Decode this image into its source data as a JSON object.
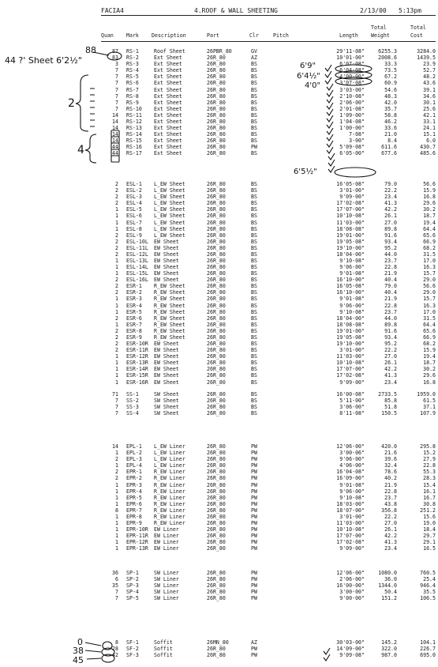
{
  "header": {
    "job": "FACIA4",
    "title": "4.ROOF & WALL SHEETING",
    "date": "2/13/00",
    "time": "5:13pm"
  },
  "columns": {
    "quan": "Quan",
    "mark": "Mark",
    "description": "Description",
    "part": "Part",
    "clr": "Clr",
    "pitch": "Pitch",
    "length": "Length",
    "total_weight_1": "Total",
    "total_weight_2": "Weight",
    "total_cost_1": "Total",
    "total_cost_2": "Cost"
  },
  "groups": [
    {
      "rows": [
        {
          "q": "87",
          "m": "RS-1",
          "d": "Roof Sheet",
          "p": "26PBR_80",
          "c": "GV",
          "l": "29'11-08\"",
          "w": "6255.3",
          "t": "3284.0"
        },
        {
          "q": "83",
          "m": "RS-2",
          "d": "Ext Sheet",
          "p": "26R_80",
          "c": "AZ",
          "l": "10'01-00\"",
          "w": "2008.6",
          "t": "1439.5"
        },
        {
          "q": "3",
          "m": "RS-3",
          "d": "Ext Sheet",
          "p": "26R_80",
          "c": "BS",
          "l": "6'07-08\"",
          "w": "33.3",
          "t": "23.9"
        },
        {
          "q": "7",
          "m": "RS-4",
          "d": "Ext Sheet",
          "p": "26R_80",
          "c": "BS",
          "l": "6'04-08\"",
          "w": "73.5",
          "t": "52.7"
        },
        {
          "q": "7",
          "m": "RS-5",
          "d": "Ext Sheet",
          "p": "26R_80",
          "c": "BS",
          "l": "4'00-00\"",
          "w": "67.2",
          "t": "48.2"
        },
        {
          "q": "7",
          "m": "RS-6",
          "d": "Ext Sheet",
          "p": "26R_80",
          "c": "BS",
          "l": "3'07-08\"",
          "w": "60.9",
          "t": "43.6"
        },
        {
          "q": "7",
          "m": "RS-7",
          "d": "Ext Sheet",
          "p": "26R_80",
          "c": "BS",
          "l": "3'03-00\"",
          "w": "54.6",
          "t": "39.1"
        },
        {
          "q": "7",
          "m": "RS-8",
          "d": "Ext Sheet",
          "p": "26R_80",
          "c": "BS",
          "l": "2'10-08\"",
          "w": "48.3",
          "t": "34.6"
        },
        {
          "q": "7",
          "m": "RS-9",
          "d": "Ext Sheet",
          "p": "26R_80",
          "c": "BS",
          "l": "2'06-00\"",
          "w": "42.0",
          "t": "30.1"
        },
        {
          "q": "7",
          "m": "RS-10",
          "d": "Ext Sheet",
          "p": "26R_80",
          "c": "BS",
          "l": "2'01-08\"",
          "w": "35.7",
          "t": "25.6"
        },
        {
          "q": "14",
          "m": "RS-11",
          "d": "Ext Sheet",
          "p": "26R_80",
          "c": "BS",
          "l": "1'09-00\"",
          "w": "58.8",
          "t": "42.1"
        },
        {
          "q": "14",
          "m": "RS-12",
          "d": "Ext Sheet",
          "p": "26R_80",
          "c": "BS",
          "l": "1'04-08\"",
          "w": "46.2",
          "t": "33.1"
        },
        {
          "q": "14",
          "m": "RS-13",
          "d": "Ext Sheet",
          "p": "26R_80",
          "c": "BS",
          "l": "1'00-00\"",
          "w": "33.6",
          "t": "24.1"
        },
        {
          "q": "14",
          "m": "RS-14",
          "d": "Ext Sheet",
          "p": "26R_80",
          "c": "BS",
          "l": "7-08\"",
          "w": "21.0",
          "t": "15.1"
        },
        {
          "q": "14",
          "m": "RS-15",
          "d": "Ext Sheet",
          "p": "26R_80",
          "c": "BS",
          "l": "3-00\"",
          "w": "8.4",
          "t": "6.0"
        },
        {
          "q": "44",
          "m": "RS-16",
          "d": "Ext Sheet",
          "p": "26R_80",
          "c": "PW",
          "l": "5'09-08\"",
          "w": "611.6",
          "t": "430.7"
        },
        {
          "q": "44",
          "m": "RS-17",
          "d": "Ext Sheet",
          "p": "26R_80",
          "c": "BS",
          "l": "6'05-00\"",
          "w": "677.6",
          "t": "485.6"
        }
      ]
    },
    {
      "rows": [
        {
          "q": "2",
          "m": "ESL-1",
          "d": "L_EW Sheet",
          "p": "26R_80",
          "c": "BS",
          "l": "16'05-08\"",
          "w": "79.0",
          "t": "56.6"
        },
        {
          "q": "2",
          "m": "ESL-2",
          "d": "L_EW Sheet",
          "p": "26R_80",
          "c": "BS",
          "l": "3'01-00\"",
          "w": "22.2",
          "t": "15.9"
        },
        {
          "q": "2",
          "m": "ESL-3",
          "d": "L_EW Sheet",
          "p": "26R_80",
          "c": "BS",
          "l": "9'09-00\"",
          "w": "23.4",
          "t": "16.8"
        },
        {
          "q": "2",
          "m": "ESL-4",
          "d": "L_EW Sheet",
          "p": "26R_80",
          "c": "BS",
          "l": "17'02-08\"",
          "w": "41.3",
          "t": "29.6"
        },
        {
          "q": "1",
          "m": "ESL-5",
          "d": "L_EW Sheet",
          "p": "26R_80",
          "c": "BS",
          "l": "17'07-00\"",
          "w": "42.2",
          "t": "30.2"
        },
        {
          "q": "1",
          "m": "ESL-6",
          "d": "L_EW Sheet",
          "p": "26R_80",
          "c": "BS",
          "l": "10'10-08\"",
          "w": "26.1",
          "t": "18.7"
        },
        {
          "q": "1",
          "m": "ESL-7",
          "d": "L_EW Sheet",
          "p": "26R_80",
          "c": "BS",
          "l": "11'03-00\"",
          "w": "27.0",
          "t": "19.4"
        },
        {
          "q": "1",
          "m": "ESL-8",
          "d": "L_EW Sheet",
          "p": "26R_80",
          "c": "BS",
          "l": "18'08-08\"",
          "w": "89.8",
          "t": "64.4"
        },
        {
          "q": "2",
          "m": "ESL-9",
          "d": "L_EW Sheet",
          "p": "26R_80",
          "c": "BS",
          "l": "19'01-00\"",
          "w": "91.6",
          "t": "65.6"
        },
        {
          "q": "2",
          "m": "ESL-10L",
          "d": "EW Sheet",
          "p": "26R_80",
          "c": "BS",
          "l": "19'05-08\"",
          "w": "93.4",
          "t": "66.9"
        },
        {
          "q": "2",
          "m": "ESL-11L",
          "d": "EW Sheet",
          "p": "26R_80",
          "c": "BS",
          "l": "19'10-00\"",
          "w": "95.2",
          "t": "68.2"
        },
        {
          "q": "2",
          "m": "ESL-12L",
          "d": "EW Sheet",
          "p": "26R_80",
          "c": "BS",
          "l": "18'04-00\"",
          "w": "44.0",
          "t": "31.5"
        },
        {
          "q": "1",
          "m": "ESL-13L",
          "d": "EW Sheet",
          "p": "26R_80",
          "c": "BS",
          "l": "9'10-08\"",
          "w": "23.7",
          "t": "17.0"
        },
        {
          "q": "1",
          "m": "ESL-14L",
          "d": "EW Sheet",
          "p": "26R_80",
          "c": "BS",
          "l": "9'06-00\"",
          "w": "22.8",
          "t": "16.3"
        },
        {
          "q": "1",
          "m": "ESL-15L",
          "d": "EW Sheet",
          "p": "26R_80",
          "c": "BS",
          "l": "9'01-08\"",
          "w": "21.9",
          "t": "15.7"
        },
        {
          "q": "2",
          "m": "ESL-16L",
          "d": "EW Sheet",
          "p": "26R_80",
          "c": "BS",
          "l": "16'10-00\"",
          "w": "40.4",
          "t": "29.0"
        },
        {
          "q": "2",
          "m": "ESR-1",
          "d": "R_EW Sheet",
          "p": "26R_80",
          "c": "BS",
          "l": "16'05-08\"",
          "w": "79.0",
          "t": "56.6"
        },
        {
          "q": "2",
          "m": "ESR-2",
          "d": "R_EW Sheet",
          "p": "26R_80",
          "c": "BS",
          "l": "16'10-00\"",
          "w": "40.4",
          "t": "29.0"
        },
        {
          "q": "1",
          "m": "ESR-3",
          "d": "R_EW Sheet",
          "p": "26R_80",
          "c": "BS",
          "l": "9'01-08\"",
          "w": "21.9",
          "t": "15.7"
        },
        {
          "q": "1",
          "m": "ESR-4",
          "d": "R_EW Sheet",
          "p": "26R_80",
          "c": "BS",
          "l": "9'06-00\"",
          "w": "22.8",
          "t": "16.3"
        },
        {
          "q": "1",
          "m": "ESR-5",
          "d": "R_EW Sheet",
          "p": "26R_80",
          "c": "BS",
          "l": "9'10-08\"",
          "w": "23.7",
          "t": "17.0"
        },
        {
          "q": "2",
          "m": "ESR-6",
          "d": "R_EW Sheet",
          "p": "26R_80",
          "c": "BS",
          "l": "18'04-00\"",
          "w": "44.0",
          "t": "31.5"
        },
        {
          "q": "1",
          "m": "ESR-7",
          "d": "R_EW Sheet",
          "p": "26R_80",
          "c": "BS",
          "l": "18'08-08\"",
          "w": "89.8",
          "t": "64.4"
        },
        {
          "q": "2",
          "m": "ESR-8",
          "d": "R_EW Sheet",
          "p": "26R_80",
          "c": "BS",
          "l": "19'01-00\"",
          "w": "91.6",
          "t": "65.6"
        },
        {
          "q": "2",
          "m": "ESR-9",
          "d": "R_EW Sheet",
          "p": "26R_80",
          "c": "BS",
          "l": "19'05-08\"",
          "w": "93.4",
          "t": "66.9"
        },
        {
          "q": "2",
          "m": "ESR-10R",
          "d": "EW Sheet",
          "p": "26R_80",
          "c": "BS",
          "l": "19'10-00\"",
          "w": "95.2",
          "t": "68.2"
        },
        {
          "q": "2",
          "m": "ESR-11R",
          "d": "EW Sheet",
          "p": "26R_80",
          "c": "BS",
          "l": "3'01-00\"",
          "w": "22.2",
          "t": "15.9"
        },
        {
          "q": "1",
          "m": "ESR-12R",
          "d": "EW Sheet",
          "p": "26R_80",
          "c": "BS",
          "l": "11'03-00\"",
          "w": "27.0",
          "t": "19.4"
        },
        {
          "q": "1",
          "m": "ESR-13R",
          "d": "EW Sheet",
          "p": "26R_80",
          "c": "BS",
          "l": "10'10-08\"",
          "w": "26.1",
          "t": "18.7"
        },
        {
          "q": "1",
          "m": "ESR-14R",
          "d": "EW Sheet",
          "p": "26R_80",
          "c": "BS",
          "l": "17'07-00\"",
          "w": "42.2",
          "t": "30.2"
        },
        {
          "q": "1",
          "m": "ESR-15R",
          "d": "EW Sheet",
          "p": "26R_80",
          "c": "BS",
          "l": "17'02-08\"",
          "w": "41.3",
          "t": "29.6"
        },
        {
          "q": "1",
          "m": "ESR-16R",
          "d": "EW Sheet",
          "p": "26R_80",
          "c": "BS",
          "l": "9'09-00\"",
          "w": "23.4",
          "t": "16.8"
        }
      ]
    },
    {
      "rows": [
        {
          "q": "71",
          "m": "SS-1",
          "d": "SW Sheet",
          "p": "26R_80",
          "c": "BS",
          "l": "16'00-08\"",
          "w": "2733.5",
          "t": "1959.0"
        },
        {
          "q": "7",
          "m": "SS-2",
          "d": "SW Sheet",
          "p": "26R_80",
          "c": "BS",
          "l": "5'11-00\"",
          "w": "85.8",
          "t": "61.5"
        },
        {
          "q": "7",
          "m": "SS-3",
          "d": "SW Sheet",
          "p": "26R_80",
          "c": "BS",
          "l": "3'06-00\"",
          "w": "51.8",
          "t": "37.1"
        },
        {
          "q": "7",
          "m": "SS-4",
          "d": "SW Sheet",
          "p": "26R_80",
          "c": "BS",
          "l": "8'11-08\"",
          "w": "150.5",
          "t": "107.9"
        }
      ]
    },
    {
      "rows": [
        {
          "q": "14",
          "m": "EPL-1",
          "d": "L_EW Liner",
          "p": "26R_80",
          "c": "PW",
          "l": "12'06-00\"",
          "w": "420.0",
          "t": "295.8"
        },
        {
          "q": "1",
          "m": "EPL-2",
          "d": "L_EW Liner",
          "p": "26R_80",
          "c": "PW",
          "l": "3'00-06\"",
          "w": "21.6",
          "t": "15.2"
        },
        {
          "q": "2",
          "m": "EPL-3",
          "d": "L_EW Liner",
          "p": "26R_80",
          "c": "PW",
          "l": "9'06-00\"",
          "w": "39.6",
          "t": "27.9"
        },
        {
          "q": "1",
          "m": "EPL-4",
          "d": "L_EW Liner",
          "p": "26R_80",
          "c": "PW",
          "l": "4'06-00\"",
          "w": "32.4",
          "t": "22.8"
        },
        {
          "q": "2",
          "m": "EPR-1",
          "d": "R_EW Liner",
          "p": "26R_80",
          "c": "PW",
          "l": "16'04-08\"",
          "w": "78.6",
          "t": "55.3"
        },
        {
          "q": "2",
          "m": "EPR-2",
          "d": "R_EW Liner",
          "p": "26R_80",
          "c": "PW",
          "l": "16'09-00\"",
          "w": "40.2",
          "t": "28.3"
        },
        {
          "q": "1",
          "m": "EPR-3",
          "d": "R_EW Liner",
          "p": "26R_80",
          "c": "PW",
          "l": "9'01-08\"",
          "w": "21.9",
          "t": "15.4"
        },
        {
          "q": "1",
          "m": "EPR-4",
          "d": "R_EW Liner",
          "p": "26R_80",
          "c": "PW",
          "l": "9'06-00\"",
          "w": "22.8",
          "t": "16.1"
        },
        {
          "q": "1",
          "m": "EPR-5",
          "d": "R_EW Liner",
          "p": "26R_80",
          "c": "PW",
          "l": "9'10-08\"",
          "w": "23.7",
          "t": "16.7"
        },
        {
          "q": "1",
          "m": "EPR-6",
          "d": "R_EW Liner",
          "p": "26R_80",
          "c": "PW",
          "l": "18'03-00\"",
          "w": "43.8",
          "t": "30.8"
        },
        {
          "q": "8",
          "m": "EPR-7",
          "d": "R_EW Liner",
          "p": "26R_80",
          "c": "PW",
          "l": "18'07-00\"",
          "w": "356.8",
          "t": "251.2"
        },
        {
          "q": "1",
          "m": "EPR-8",
          "d": "R_EW Liner",
          "p": "26R_80",
          "c": "PW",
          "l": "3'01-00\"",
          "w": "22.2",
          "t": "15.6"
        },
        {
          "q": "1",
          "m": "EPR-9",
          "d": "R_EW Liner",
          "p": "26R_80",
          "c": "PW",
          "l": "11'03-00\"",
          "w": "27.0",
          "t": "19.0"
        },
        {
          "q": "1",
          "m": "EPR-10R",
          "d": "EW Liner",
          "p": "26R_80",
          "c": "PW",
          "l": "10'10-08\"",
          "w": "26.1",
          "t": "18.4"
        },
        {
          "q": "1",
          "m": "EPR-11R",
          "d": "EW Liner",
          "p": "26R_80",
          "c": "PW",
          "l": "17'07-00\"",
          "w": "42.2",
          "t": "29.7"
        },
        {
          "q": "1",
          "m": "EPR-12R",
          "d": "EW Liner",
          "p": "26R_80",
          "c": "PW",
          "l": "17'02-08\"",
          "w": "41.3",
          "t": "29.1"
        },
        {
          "q": "1",
          "m": "EPR-13R",
          "d": "EW Liner",
          "p": "26R_80",
          "c": "PW",
          "l": "9'09-00\"",
          "w": "23.4",
          "t": "16.5"
        }
      ]
    },
    {
      "rows": [
        {
          "q": "36",
          "m": "SP-1",
          "d": "SW Liner",
          "p": "26R_80",
          "c": "PW",
          "l": "12'06-00\"",
          "w": "1080.0",
          "t": "760.5"
        },
        {
          "q": "6",
          "m": "SP-2",
          "d": "SW Liner",
          "p": "26R_80",
          "c": "PW",
          "l": "2'06-00\"",
          "w": "36.0",
          "t": "25.4"
        },
        {
          "q": "35",
          "m": "SP-3",
          "d": "SW Liner",
          "p": "26R_80",
          "c": "PW",
          "l": "16'00-00\"",
          "w": "1344.0",
          "t": "946.4"
        },
        {
          "q": "7",
          "m": "SP-4",
          "d": "SW Liner",
          "p": "26R_80",
          "c": "PW",
          "l": "3'00-00\"",
          "w": "50.4",
          "t": "35.5"
        },
        {
          "q": "7",
          "m": "SP-5",
          "d": "SW Liner",
          "p": "26R_80",
          "c": "PW",
          "l": "9'00-00\"",
          "w": "151.2",
          "t": "106.5"
        }
      ]
    },
    {
      "rows": [
        {
          "q": "8",
          "m": "SF-1",
          "d": "Soffit",
          "p": "26MN_80",
          "c": "AZ",
          "l": "30'03-00\"",
          "w": "145.2",
          "t": "104.1"
        },
        {
          "q": "28",
          "m": "SF-2",
          "d": "Soffit",
          "p": "26R_80",
          "c": "PW",
          "l": "14'09-00\"",
          "w": "322.0",
          "t": "226.7"
        },
        {
          "q": "42",
          "m": "SF-3",
          "d": "Soffit",
          "p": "26R_80",
          "c": "PW",
          "l": "9'09-08\"",
          "w": "987.0",
          "t": "695.0"
        }
      ]
    }
  ],
  "handwritten": {
    "note_44": "44 ?' Sheet 6'2½\"",
    "note_88": "88",
    "bracket_2": "2",
    "bracket_4": "4",
    "len_1": "6'9\"",
    "len_2": "6'4½\"",
    "len_3": "4'0\"",
    "len_4": "6'5½\"",
    "soffit_0": "0",
    "soffit_38": "38",
    "soffit_45": "45"
  }
}
